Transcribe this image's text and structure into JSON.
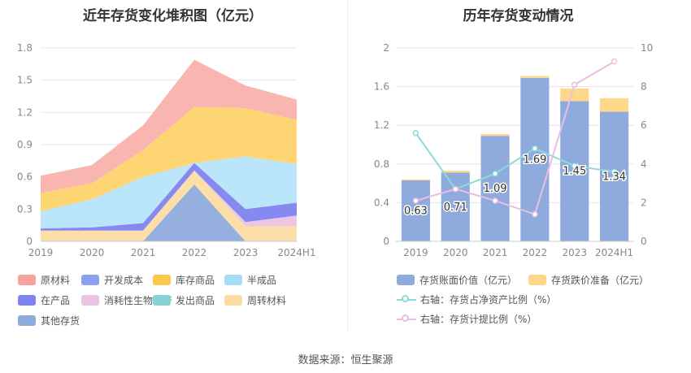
{
  "source_label": "数据来源：恒生聚源",
  "chart_data": [
    {
      "type": "area",
      "title": "近年存货变化堆积图（亿元）",
      "x": [
        "2019",
        "2020",
        "2021",
        "2022",
        "2023",
        "2024H1"
      ],
      "ylim": [
        0,
        1.8
      ],
      "yticks": [
        "0",
        "0.3",
        "0.6",
        "0.9",
        "1.2",
        "1.5",
        "1.8"
      ],
      "stacked": true,
      "legend_position": "bottom",
      "series": [
        {
          "name": "其他存货",
          "color": "#8fabdd",
          "values": [
            0,
            0,
            0,
            0.53,
            0,
            0
          ]
        },
        {
          "name": "周转材料",
          "color": "#fcdca4",
          "values": [
            0.1,
            0.1,
            0.1,
            0.13,
            0.14,
            0.14
          ]
        },
        {
          "name": "发出商品",
          "color": "#86d3d7",
          "values": [
            0,
            0,
            0,
            0,
            0,
            0
          ]
        },
        {
          "name": "消耗性生物资产",
          "color": "#ebc3e2",
          "values": [
            0,
            0,
            0,
            0,
            0.04,
            0.1
          ]
        },
        {
          "name": "在产品",
          "color": "#7f84ef",
          "values": [
            0.02,
            0.03,
            0.07,
            0.07,
            0.12,
            0.12
          ]
        },
        {
          "name": "半成品",
          "color": "#b7e4fa",
          "values": [
            0.16,
            0.26,
            0.43,
            0,
            0.49,
            0.36
          ]
        },
        {
          "name": "库存商品",
          "color": "#fdd46c",
          "values": [
            0.17,
            0.15,
            0.25,
            0.52,
            0.45,
            0.41
          ]
        },
        {
          "name": "开发成本",
          "color": "#8aa1f1",
          "values": [
            0,
            0,
            0,
            0,
            0,
            0
          ]
        },
        {
          "name": "原材料",
          "color": "#f9b1ab",
          "values": [
            0.16,
            0.17,
            0.23,
            0.44,
            0.21,
            0.19
          ]
        }
      ],
      "legend": [
        {
          "name": "原材料",
          "color": "#f7a39c"
        },
        {
          "name": "开发成本",
          "color": "#8aa1f1"
        },
        {
          "name": "库存商品",
          "color": "#fcc84a"
        },
        {
          "name": "半成品",
          "color": "#a7dcf7"
        },
        {
          "name": "在产品",
          "color": "#7f84ef"
        },
        {
          "name": "消耗性生物资产",
          "color": "#ebc3e2"
        },
        {
          "name": "发出商品",
          "color": "#86d3d7"
        },
        {
          "name": "周转材料",
          "color": "#fcdca4"
        },
        {
          "name": "其他存货",
          "color": "#8fabdd"
        }
      ]
    },
    {
      "type": "bar",
      "title": "历年存货变动情况",
      "categories": [
        "2019",
        "2020",
        "2021",
        "2022",
        "2023",
        "2024H1"
      ],
      "ylim": [
        0,
        2
      ],
      "yticks": [
        "0",
        "0.4",
        "0.8",
        "1.2",
        "1.6",
        "2"
      ],
      "y2lim": [
        0,
        10
      ],
      "y2ticks": [
        "0",
        "2",
        "4",
        "6",
        "8",
        "10"
      ],
      "legend_position": "bottom",
      "series": [
        {
          "name": "存货账面价值（亿元）",
          "type": "bar",
          "color": "#8fabdd",
          "values": [
            0.63,
            0.71,
            1.09,
            1.69,
            1.45,
            1.34
          ],
          "labels": [
            "0.63",
            "0.71",
            "1.09",
            "1.69",
            "1.45",
            "1.34"
          ]
        },
        {
          "name": "存货跌价准备（亿元）",
          "type": "bar",
          "color": "#fdd88a",
          "values": [
            0.01,
            0.02,
            0.02,
            0.02,
            0.13,
            0.14
          ]
        },
        {
          "name": "右轴：存货占净资产比例（%）",
          "type": "line",
          "axis": "right",
          "color": "#8bdbdb",
          "values": [
            5.6,
            2.7,
            3.5,
            4.8,
            3.9,
            3.6
          ]
        },
        {
          "name": "右轴：存货计提比例（%）",
          "type": "line",
          "axis": "right",
          "color": "#e8bfe0",
          "values": [
            2.1,
            2.7,
            2.1,
            1.4,
            8.1,
            9.3
          ]
        }
      ]
    }
  ]
}
